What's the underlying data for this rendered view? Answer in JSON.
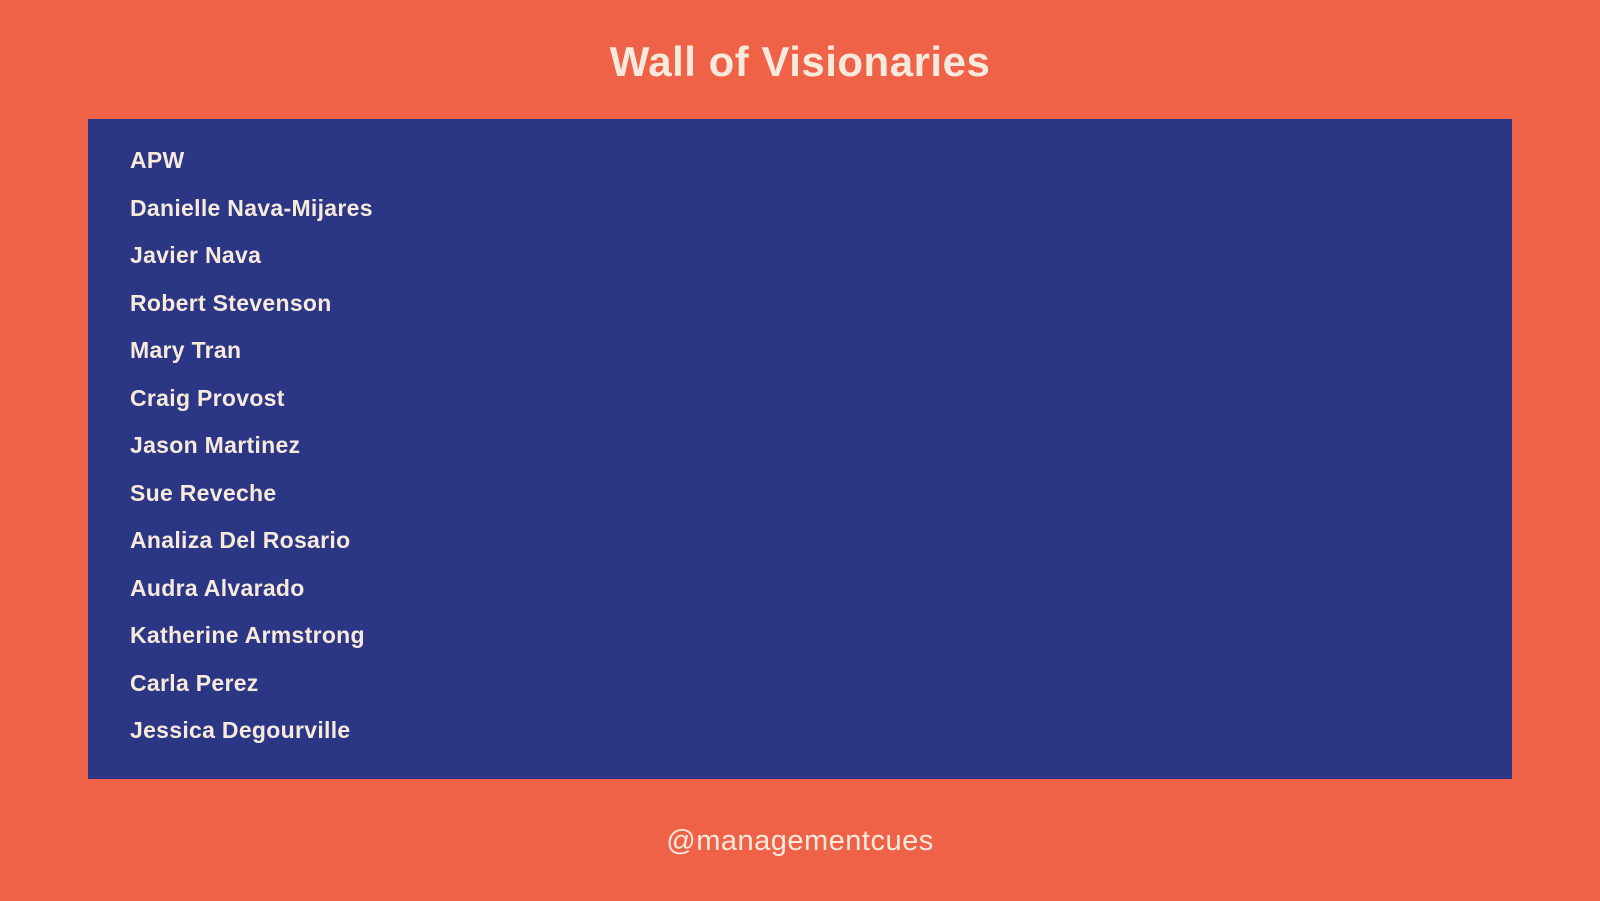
{
  "title": "Wall of Visionaries",
  "footer_handle": "@managementcues",
  "names": [
    "APW",
    "Danielle Nava-Mijares",
    "Javier Nava",
    "Robert Stevenson",
    "Mary Tran",
    "Craig Provost",
    "Jason Martinez",
    "Sue Reveche",
    "Analiza Del Rosario",
    "Audra Alvarado",
    "Katherine Armstrong",
    "Carla Perez",
    "Jessica Degourville"
  ],
  "colors": {
    "background": "#EF6248",
    "panel": "#2B3784",
    "text": "#F7EADD"
  }
}
